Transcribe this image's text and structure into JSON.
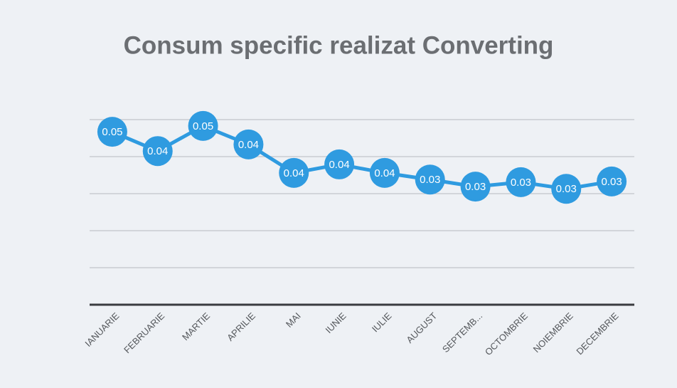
{
  "chart_data": {
    "type": "line",
    "title": "Consum specific realizat Converting",
    "categories": [
      "IANUARIE",
      "FEBRUARIE",
      "MARTIE",
      "APRILIE",
      "MAI",
      "IUNIE",
      "IULIE",
      "AUGUST",
      "SEPTEMB...",
      "OCTOMBRIE",
      "NOIEMBRIE",
      "DECEMBRIE"
    ],
    "series": [
      {
        "name": "Consum specific",
        "color": "#2f9be0",
        "values": [
          0.0467,
          0.0415,
          0.0483,
          0.0433,
          0.0356,
          0.0379,
          0.0356,
          0.0338,
          0.0319,
          0.0331,
          0.0313,
          0.0333
        ],
        "value_labels": [
          "0.05",
          "0.04",
          "0.05",
          "0.04",
          "0.04",
          "0.04",
          "0.04",
          "0.03",
          "0.03",
          "0.03",
          "0.03",
          "0.03"
        ]
      }
    ],
    "ylim": [
      0,
      0.05
    ],
    "yticks": [
      0,
      0.01,
      0.02,
      0.03,
      0.04,
      0.05
    ],
    "grid": true
  }
}
